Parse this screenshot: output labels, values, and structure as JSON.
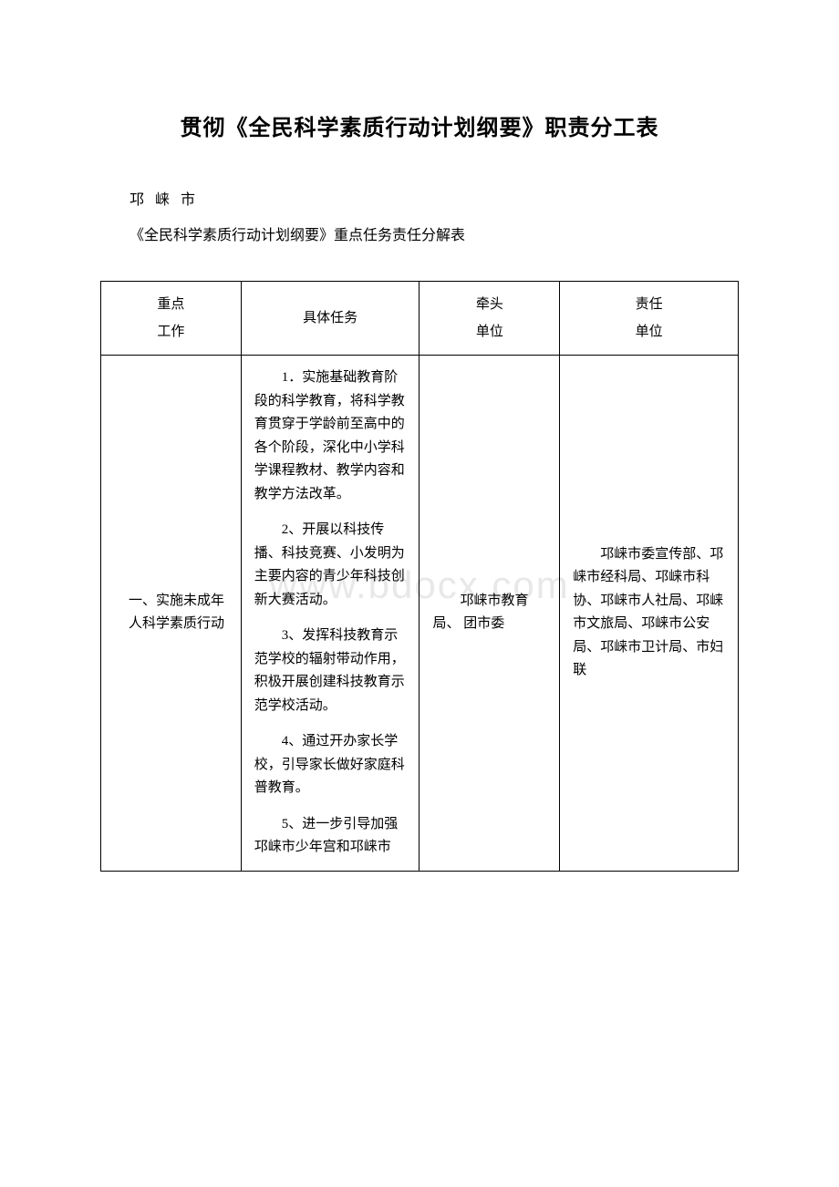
{
  "title": "贯彻《全民科学素质行动计划纲要》职责分工表",
  "subtitle1": "邛 崃 市",
  "subtitle2": "《全民科学素质行动计划纲要》重点任务责任分解表",
  "watermark": "www.bdocx.com",
  "table": {
    "headers": {
      "col1_line1": "重点",
      "col1_line2": "工作",
      "col2": "具体任务",
      "col3_line1": "牵头",
      "col3_line2": "单位",
      "col4_line1": "责任",
      "col4_line2": "单位"
    },
    "row1": {
      "work": "一、实施未成年人科学素质行动",
      "tasks": {
        "t1": "1．实施基础教育阶段的科学教育，将科学教育贯穿于学龄前至高中的各个阶段，深化中小学科学课程教材、教学内容和教学方法改革。",
        "t2": "2、开展以科技传播、科技竞赛、小发明为主要内容的青少年科技创新大赛活动。",
        "t3": "3、发挥科技教育示范学校的辐射带动作用，积极开展创建科技教育示范学校活动。",
        "t4": "4、通过开办家长学校，引导家长做好家庭科普教育。",
        "t5": "5、进一步引导加强邛崃市少年宫和邛崃市"
      },
      "lead": "邛崃市教育局、 团市委",
      "responsible": "邛崃市委宣传部、邛崃市经科局、邛崃市科协、邛崃市人社局、邛崃市文旅局、邛崃市公安局、邛崃市卫计局、市妇联"
    }
  },
  "colors": {
    "text": "#000000",
    "border": "#000000",
    "background": "#ffffff",
    "watermark": "#e8e8e8"
  }
}
